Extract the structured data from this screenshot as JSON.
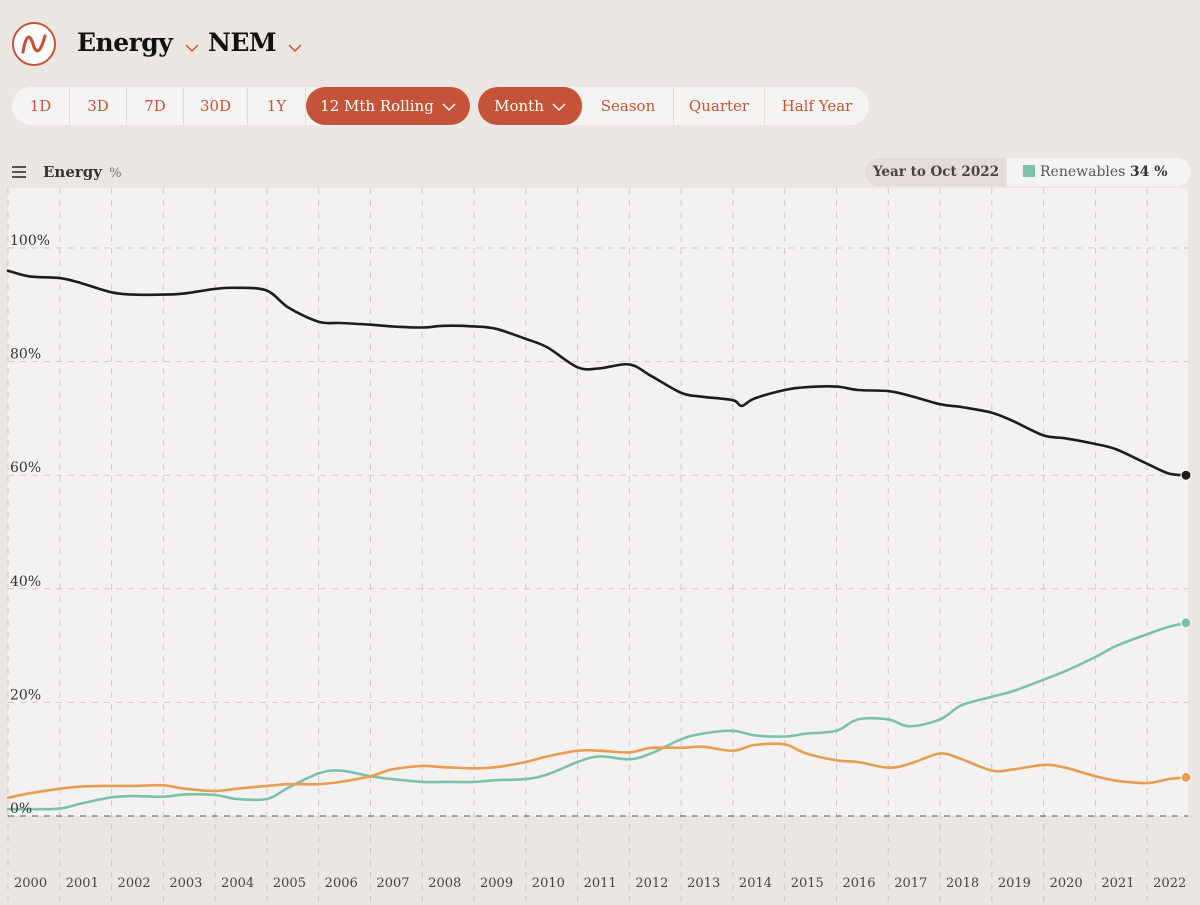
{
  "header": {
    "metric_label": "Energy",
    "region_label": "NEM"
  },
  "range_buttons": [
    "1D",
    "3D",
    "7D",
    "30D",
    "1Y",
    "12 Mth Rolling"
  ],
  "range_active": "12 Mth Rolling",
  "interval_buttons": [
    "Month",
    "Season",
    "Quarter",
    "Half Year"
  ],
  "interval_active": "Month",
  "chart_header": {
    "title": "Energy",
    "unit": "%"
  },
  "legend": {
    "period": "Year to Oct 2022",
    "item_name": "Renewables",
    "item_value": "34",
    "item_unit": "%"
  },
  "colors": {
    "accent": "#c5533a",
    "fossil": "#1d1d1d",
    "renewables": "#7bc2ad",
    "orange_series": "#e89c4f"
  },
  "chart_data": {
    "type": "line",
    "x_start": "2000-01",
    "x_end": "2022-10",
    "ylim": [
      0,
      110
    ],
    "y_ticks": [
      0,
      20,
      40,
      60,
      80,
      100
    ],
    "y_tick_labels": [
      "0%",
      "20%",
      "40%",
      "60%",
      "80%",
      "100%"
    ],
    "x_tick_labels": [
      "2000",
      "2001",
      "2002",
      "2003",
      "2004",
      "2005",
      "2006",
      "2007",
      "2008",
      "2009",
      "2010",
      "2011",
      "2012",
      "2013",
      "2014",
      "2015",
      "2016",
      "2017",
      "2018",
      "2019",
      "2020",
      "2021",
      "2022"
    ],
    "grid": true,
    "series": [
      {
        "key": "fossil",
        "color": "#1d1d1d",
        "points": [
          [
            "2000-01",
            96.0
          ],
          [
            "2000-06",
            95.0
          ],
          [
            "2001-01",
            94.7
          ],
          [
            "2001-06",
            93.8
          ],
          [
            "2002-01",
            92.2
          ],
          [
            "2002-06",
            91.8
          ],
          [
            "2003-01",
            91.8
          ],
          [
            "2003-06",
            92.0
          ],
          [
            "2004-01",
            92.8
          ],
          [
            "2004-06",
            93.0
          ],
          [
            "2005-01",
            92.5
          ],
          [
            "2005-06",
            89.5
          ],
          [
            "2006-01",
            87.0
          ],
          [
            "2006-06",
            86.8
          ],
          [
            "2007-01",
            86.5
          ],
          [
            "2007-06",
            86.2
          ],
          [
            "2008-01",
            86.0
          ],
          [
            "2008-06",
            86.3
          ],
          [
            "2009-01",
            86.2
          ],
          [
            "2009-06",
            85.8
          ],
          [
            "2010-01",
            84.0
          ],
          [
            "2010-06",
            82.5
          ],
          [
            "2011-01",
            79.0
          ],
          [
            "2011-06",
            78.8
          ],
          [
            "2012-01",
            79.5
          ],
          [
            "2012-06",
            77.5
          ],
          [
            "2013-01",
            74.5
          ],
          [
            "2013-06",
            73.8
          ],
          [
            "2014-01",
            73.2
          ],
          [
            "2014-03",
            72.2
          ],
          [
            "2014-06",
            73.5
          ],
          [
            "2015-01",
            75.0
          ],
          [
            "2015-06",
            75.5
          ],
          [
            "2016-01",
            75.6
          ],
          [
            "2016-06",
            75.0
          ],
          [
            "2017-01",
            74.8
          ],
          [
            "2017-06",
            74.0
          ],
          [
            "2018-01",
            72.5
          ],
          [
            "2018-06",
            72.0
          ],
          [
            "2019-01",
            71.0
          ],
          [
            "2019-06",
            69.5
          ],
          [
            "2020-01",
            67.0
          ],
          [
            "2020-06",
            66.5
          ],
          [
            "2021-01",
            65.5
          ],
          [
            "2021-06",
            64.5
          ],
          [
            "2022-01",
            62.0
          ],
          [
            "2022-06",
            60.3
          ],
          [
            "2022-10",
            60.0
          ]
        ]
      },
      {
        "key": "renewables",
        "color": "#7bc2ad",
        "points": [
          [
            "2000-01",
            1.2
          ],
          [
            "2000-06",
            1.2
          ],
          [
            "2001-01",
            1.3
          ],
          [
            "2001-06",
            2.2
          ],
          [
            "2002-01",
            3.3
          ],
          [
            "2002-06",
            3.5
          ],
          [
            "2003-01",
            3.4
          ],
          [
            "2003-06",
            3.8
          ],
          [
            "2004-01",
            3.7
          ],
          [
            "2004-06",
            3.0
          ],
          [
            "2005-01",
            3.0
          ],
          [
            "2005-06",
            5.0
          ],
          [
            "2006-01",
            7.5
          ],
          [
            "2006-06",
            8.0
          ],
          [
            "2007-01",
            7.0
          ],
          [
            "2007-06",
            6.5
          ],
          [
            "2008-01",
            6.0
          ],
          [
            "2008-06",
            6.0
          ],
          [
            "2009-01",
            6.0
          ],
          [
            "2009-06",
            6.3
          ],
          [
            "2010-01",
            6.5
          ],
          [
            "2010-06",
            7.3
          ],
          [
            "2011-01",
            9.5
          ],
          [
            "2011-06",
            10.5
          ],
          [
            "2012-01",
            10.0
          ],
          [
            "2012-06",
            11.0
          ],
          [
            "2013-01",
            13.5
          ],
          [
            "2013-06",
            14.5
          ],
          [
            "2014-01",
            15.0
          ],
          [
            "2014-06",
            14.2
          ],
          [
            "2015-01",
            14.0
          ],
          [
            "2015-06",
            14.5
          ],
          [
            "2016-01",
            15.0
          ],
          [
            "2016-06",
            17.0
          ],
          [
            "2017-01",
            17.0
          ],
          [
            "2017-06",
            15.8
          ],
          [
            "2018-01",
            17.0
          ],
          [
            "2018-06",
            19.5
          ],
          [
            "2019-01",
            21.0
          ],
          [
            "2019-06",
            22.0
          ],
          [
            "2020-01",
            24.0
          ],
          [
            "2020-06",
            25.5
          ],
          [
            "2021-01",
            28.0
          ],
          [
            "2021-06",
            30.0
          ],
          [
            "2022-01",
            32.0
          ],
          [
            "2022-06",
            33.3
          ],
          [
            "2022-10",
            34.0
          ]
        ]
      },
      {
        "key": "orange",
        "color": "#e89c4f",
        "points": [
          [
            "2000-01",
            3.2
          ],
          [
            "2000-06",
            4.0
          ],
          [
            "2001-01",
            4.8
          ],
          [
            "2001-06",
            5.2
          ],
          [
            "2002-01",
            5.3
          ],
          [
            "2002-06",
            5.3
          ],
          [
            "2003-01",
            5.4
          ],
          [
            "2003-06",
            4.8
          ],
          [
            "2004-01",
            4.4
          ],
          [
            "2004-06",
            4.8
          ],
          [
            "2005-01",
            5.3
          ],
          [
            "2005-06",
            5.6
          ],
          [
            "2006-01",
            5.6
          ],
          [
            "2006-06",
            6.0
          ],
          [
            "2007-01",
            7.0
          ],
          [
            "2007-06",
            8.2
          ],
          [
            "2008-01",
            8.8
          ],
          [
            "2008-06",
            8.6
          ],
          [
            "2009-01",
            8.4
          ],
          [
            "2009-06",
            8.6
          ],
          [
            "2010-01",
            9.5
          ],
          [
            "2010-06",
            10.5
          ],
          [
            "2011-01",
            11.5
          ],
          [
            "2011-06",
            11.5
          ],
          [
            "2012-01",
            11.2
          ],
          [
            "2012-06",
            12.0
          ],
          [
            "2013-01",
            12.0
          ],
          [
            "2013-06",
            12.2
          ],
          [
            "2014-01",
            11.5
          ],
          [
            "2014-06",
            12.5
          ],
          [
            "2015-01",
            12.6
          ],
          [
            "2015-06",
            11.0
          ],
          [
            "2016-01",
            9.8
          ],
          [
            "2016-06",
            9.5
          ],
          [
            "2017-01",
            8.5
          ],
          [
            "2017-06",
            9.2
          ],
          [
            "2018-01",
            11.0
          ],
          [
            "2018-06",
            10.0
          ],
          [
            "2019-01",
            8.0
          ],
          [
            "2019-06",
            8.2
          ],
          [
            "2020-01",
            9.0
          ],
          [
            "2020-06",
            8.5
          ],
          [
            "2021-01",
            7.0
          ],
          [
            "2021-06",
            6.2
          ],
          [
            "2022-01",
            5.8
          ],
          [
            "2022-06",
            6.5
          ],
          [
            "2022-10",
            6.8
          ]
        ]
      }
    ]
  }
}
